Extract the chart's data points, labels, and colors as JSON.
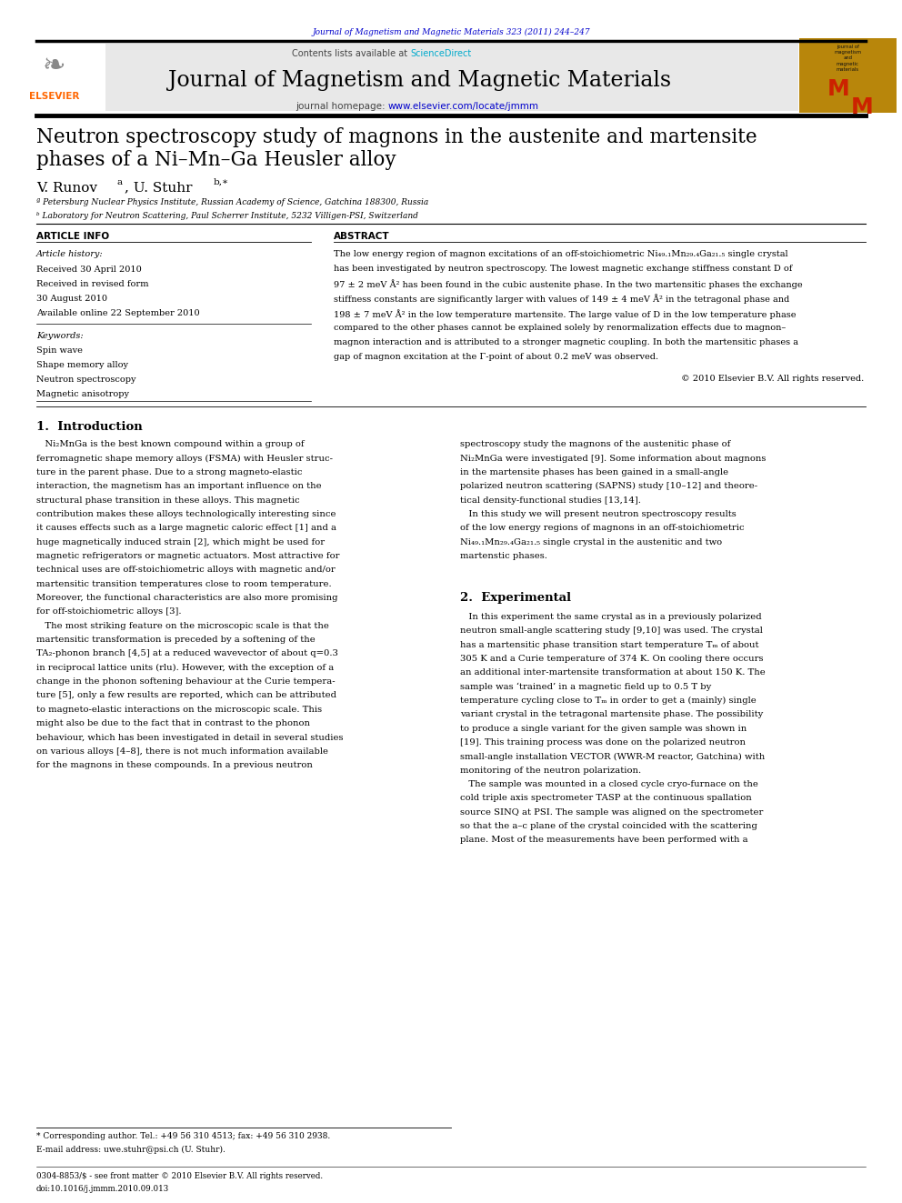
{
  "page_width": 9.92,
  "page_height": 13.23,
  "bg_color": "#ffffff",
  "top_citation": "Journal of Magnetism and Magnetic Materials 323 (2011) 244–247",
  "top_citation_color": "#0000cc",
  "header_bg": "#e8e8e8",
  "journal_title": "Journal of Magnetism and Magnetic Materials",
  "journal_homepage_url": "www.elsevier.com/locate/jmmm",
  "article_title_line1": "Neutron spectroscopy study of magnons in the austenite and martensite",
  "article_title_line2": "phases of a Ni–Mn–Ga Heusler alloy",
  "affil_a": "ª Petersburg Nuclear Physics Institute, Russian Academy of Science, Gatchina 188300, Russia",
  "affil_b": "ᵇ Laboratory for Neutron Scattering, Paul Scherrer Institute, 5232 Villigen-PSI, Switzerland",
  "section_article_info": "ARTICLE INFO",
  "section_abstract": "ABSTRACT",
  "article_history_label": "Article history:",
  "received1": "Received 30 April 2010",
  "received2": "Received in revised form",
  "received2b": "30 August 2010",
  "available": "Available online 22 September 2010",
  "keywords_label": "Keywords:",
  "keywords": [
    "Spin wave",
    "Shape memory alloy",
    "Neutron spectroscopy",
    "Magnetic anisotropy"
  ],
  "abstract_lines": [
    "The low energy region of magnon excitations of an off-stoichiometric Ni₄₉.₁Mn₂₉.₄Ga₂₁.₅ single crystal",
    "has been investigated by neutron spectroscopy. The lowest magnetic exchange stiffness constant D of",
    "97 ± 2 meV Å² has been found in the cubic austenite phase. In the two martensitic phases the exchange",
    "stiffness constants are significantly larger with values of 149 ± 4 meV Å² in the tetragonal phase and",
    "198 ± 7 meV Å² in the low temperature martensite. The large value of D in the low temperature phase",
    "compared to the other phases cannot be explained solely by renormalization effects due to magnon–",
    "magnon interaction and is attributed to a stronger magnetic coupling. In both the martensitic phases a",
    "gap of magnon excitation at the Γ-point of about 0.2 meV was observed."
  ],
  "abstract_copyright": "© 2010 Elsevier B.V. All rights reserved.",
  "section1_title": "1.  Introduction",
  "col1_lines": [
    "   Ni₂MnGa is the best known compound within a group of",
    "ferromagnetic shape memory alloys (FSMA) with Heusler struc-",
    "ture in the parent phase. Due to a strong magneto-elastic",
    "interaction, the magnetism has an important influence on the",
    "structural phase transition in these alloys. This magnetic",
    "contribution makes these alloys technologically interesting since",
    "it causes effects such as a large magnetic caloric effect [1] and a",
    "huge magnetically induced strain [2], which might be used for",
    "magnetic refrigerators or magnetic actuators. Most attractive for",
    "technical uses are off-stoichiometric alloys with magnetic and/or",
    "martensitic transition temperatures close to room temperature.",
    "Moreover, the functional characteristics are also more promising",
    "for off-stoichiometric alloys [3].",
    "   The most striking feature on the microscopic scale is that the",
    "martensitic transformation is preceded by a softening of the",
    "TA₂-phonon branch [4,5] at a reduced wavevector of about q=0.3",
    "in reciprocal lattice units (rlu). However, with the exception of a",
    "change in the phonon softening behaviour at the Curie tempera-",
    "ture [5], only a few results are reported, which can be attributed",
    "to magneto-elastic interactions on the microscopic scale. This",
    "might also be due to the fact that in contrast to the phonon",
    "behaviour, which has been investigated in detail in several studies",
    "on various alloys [4–8], there is not much information available",
    "for the magnons in these compounds. In a previous neutron"
  ],
  "col2_lines_sec1": [
    "spectroscopy study the magnons of the austenitic phase of",
    "Ni₂MnGa were investigated [9]. Some information about magnons",
    "in the martensite phases has been gained in a small-angle",
    "polarized neutron scattering (SAPNS) study [10–12] and theore-",
    "tical density-functional studies [13,14].",
    "   In this study we will present neutron spectroscopy results",
    "of the low energy regions of magnons in an off-stoichiometric",
    "Ni₄₉.₁Mn₂₉.₄Ga₂₁.₅ single crystal in the austenitic and two",
    "martenstic phases."
  ],
  "section2_title": "2.  Experimental",
  "col2_lines_sec2": [
    "   In this experiment the same crystal as in a previously polarized",
    "neutron small-angle scattering study [9,10] was used. The crystal",
    "has a martensitic phase transition start temperature Tₘ of about",
    "305 K and a Curie temperature of 374 K. On cooling there occurs",
    "an additional inter-martensite transformation at about 150 K. The",
    "sample was ‘trained’ in a magnetic field up to 0.5 T by",
    "temperature cycling close to Tₘ in order to get a (mainly) single",
    "variant crystal in the tetragonal martensite phase. The possibility",
    "to produce a single variant for the given sample was shown in",
    "[19]. This training process was done on the polarized neutron",
    "small-angle installation VECTOR (WWR-M reactor, Gatchina) with",
    "monitoring of the neutron polarization.",
    "   The sample was mounted in a closed cycle cryo-furnace on the",
    "cold triple axis spectrometer TASP at the continuous spallation",
    "source SINQ at PSI. The sample was aligned on the spectrometer",
    "so that the a–c plane of the crystal coincided with the scattering",
    "plane. Most of the measurements have been performed with a"
  ],
  "footnote_star": "* Corresponding author. Tel.: +49 56 310 4513; fax: +49 56 310 2938.",
  "footnote_email": "E-mail address: uwe.stuhr@psi.ch (U. Stuhr).",
  "footer_left": "0304-8853/$ - see front matter © 2010 Elsevier B.V. All rights reserved.",
  "footer_doi": "doi:10.1016/j.jmmm.2010.09.013",
  "red_logo_color": "#cc2200",
  "yellow_logo_bg": "#b8860b"
}
